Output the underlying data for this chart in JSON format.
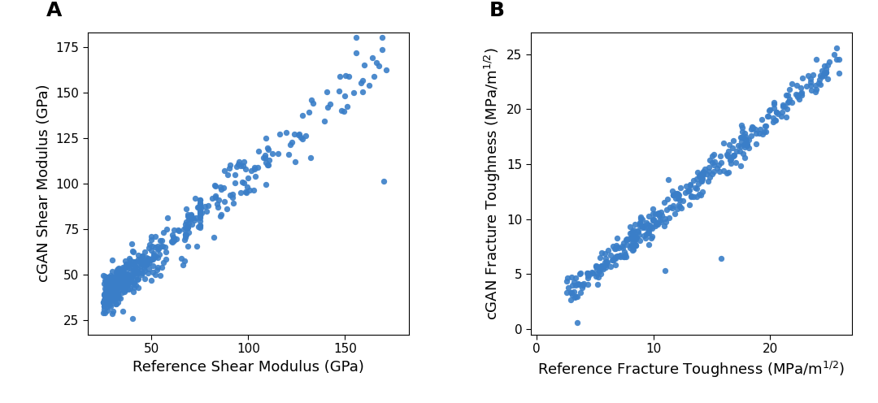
{
  "panel_A": {
    "label": "A",
    "xlabel": "Reference Shear Modulus (GPa)",
    "ylabel": "cGAN Shear Modulus (GPa)",
    "xlim": [
      17,
      183
    ],
    "ylim": [
      17,
      183
    ],
    "xticks": [
      50,
      100,
      150
    ],
    "yticks": [
      25,
      50,
      75,
      100,
      125,
      150,
      175
    ],
    "scatter_color": "#3a7ec8",
    "marker_size": 28,
    "alpha": 0.9
  },
  "panel_B": {
    "label": "B",
    "xlabel": "Reference Fracture Toughness (MPa/m$^{1/2}$)",
    "ylabel": "cGAN Fracture Toughness (MPa/m$^{1/2}$)",
    "xlim": [
      -0.5,
      27
    ],
    "ylim": [
      -0.5,
      27
    ],
    "xticks": [
      0,
      10,
      20
    ],
    "yticks": [
      0,
      5,
      10,
      15,
      20,
      25
    ],
    "scatter_color": "#3a7ec8",
    "marker_size": 28,
    "alpha": 0.9
  },
  "fig_width": 10.8,
  "fig_height": 4.96,
  "background_color": "#ffffff",
  "label_fontsize": 13,
  "tick_fontsize": 11,
  "panel_label_fontsize": 18
}
